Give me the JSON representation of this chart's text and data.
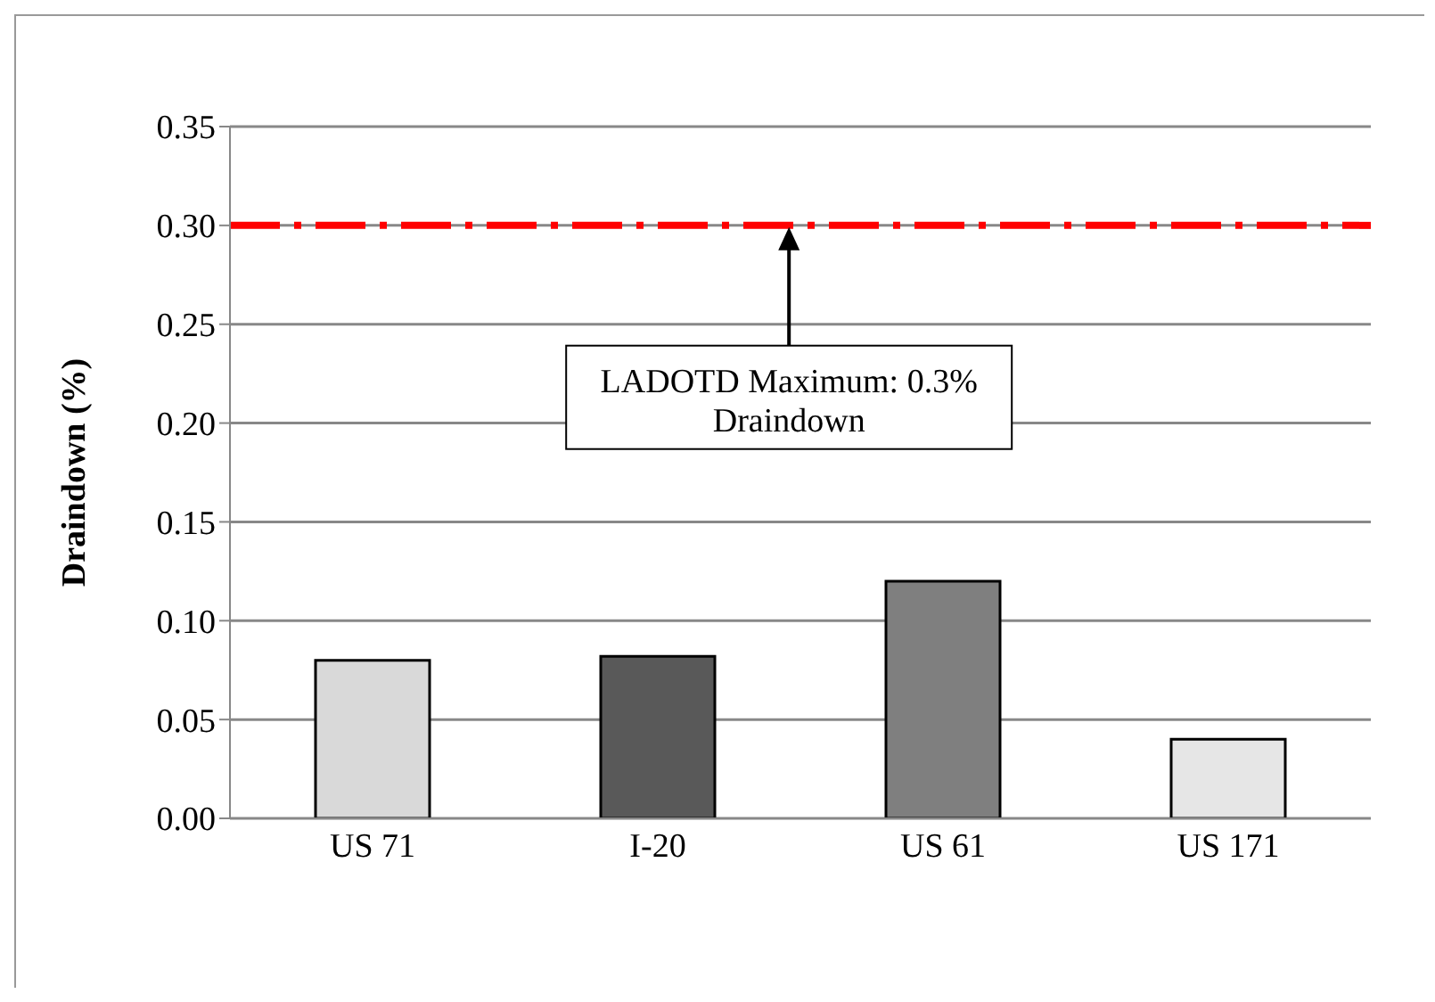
{
  "chart_data": {
    "type": "bar",
    "ylabel": "Draindown (%)",
    "categories": [
      "US 71",
      "I-20",
      "US 61",
      "US 171"
    ],
    "values": [
      0.08,
      0.082,
      0.12,
      0.04
    ],
    "colors": [
      "#d9d9d9",
      "#595959",
      "#7f7f7f",
      "#e6e6e6"
    ],
    "ylim": [
      0,
      0.35
    ],
    "yticks": [
      {
        "value": 0,
        "label": "0.00"
      },
      {
        "value": 0.05,
        "label": "0.05"
      },
      {
        "value": 0.1,
        "label": "0.10"
      },
      {
        "value": 0.15,
        "label": "0.15"
      },
      {
        "value": 0.2,
        "label": "0.20"
      },
      {
        "value": 0.25,
        "label": "0.25"
      },
      {
        "value": 0.3,
        "label": "0.30"
      },
      {
        "value": 0.35,
        "label": "0.35"
      }
    ],
    "grid": "y",
    "legend": false,
    "ref_lines": [
      {
        "axis": "y",
        "value": 0.3,
        "color": "#ff0000",
        "line_style": "dashed"
      }
    ],
    "annotations": [
      "LADOTD Maximum: 0.3% Draindown"
    ]
  }
}
